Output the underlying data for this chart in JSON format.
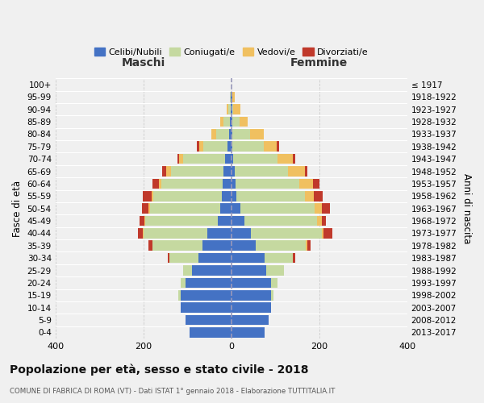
{
  "age_groups": [
    "0-4",
    "5-9",
    "10-14",
    "15-19",
    "20-24",
    "25-29",
    "30-34",
    "35-39",
    "40-44",
    "45-49",
    "50-54",
    "55-59",
    "60-64",
    "65-69",
    "70-74",
    "75-79",
    "80-84",
    "85-89",
    "90-94",
    "95-99",
    "100+"
  ],
  "birth_years": [
    "2013-2017",
    "2008-2012",
    "2003-2007",
    "1998-2002",
    "1993-1997",
    "1988-1992",
    "1983-1987",
    "1978-1982",
    "1973-1977",
    "1968-1972",
    "1963-1967",
    "1958-1962",
    "1953-1957",
    "1948-1952",
    "1943-1947",
    "1938-1942",
    "1933-1937",
    "1928-1932",
    "1923-1927",
    "1918-1922",
    "≤ 1917"
  ],
  "maschi_celibi": [
    95,
    105,
    115,
    115,
    105,
    90,
    75,
    65,
    55,
    30,
    25,
    22,
    20,
    18,
    15,
    8,
    5,
    3,
    2,
    1,
    0
  ],
  "maschi_coniugati": [
    0,
    0,
    0,
    5,
    10,
    20,
    65,
    115,
    145,
    165,
    160,
    155,
    140,
    120,
    95,
    55,
    30,
    15,
    5,
    2,
    0
  ],
  "maschi_vedovi": [
    0,
    0,
    0,
    0,
    0,
    0,
    0,
    0,
    2,
    3,
    3,
    5,
    5,
    10,
    8,
    10,
    10,
    8,
    3,
    0,
    0
  ],
  "maschi_divorziati": [
    0,
    0,
    0,
    0,
    0,
    0,
    5,
    8,
    10,
    10,
    15,
    20,
    15,
    10,
    5,
    5,
    0,
    0,
    0,
    0,
    0
  ],
  "femmine_celibi": [
    75,
    85,
    90,
    90,
    90,
    80,
    75,
    55,
    45,
    30,
    20,
    12,
    10,
    8,
    5,
    3,
    3,
    3,
    2,
    2,
    0
  ],
  "femmine_coniugati": [
    0,
    0,
    0,
    5,
    15,
    40,
    65,
    115,
    160,
    165,
    170,
    155,
    145,
    120,
    100,
    70,
    40,
    15,
    3,
    0,
    0
  ],
  "femmine_vedovi": [
    0,
    0,
    0,
    0,
    0,
    0,
    0,
    3,
    5,
    10,
    15,
    20,
    30,
    40,
    35,
    30,
    30,
    20,
    15,
    5,
    1
  ],
  "femmine_divorziati": [
    0,
    0,
    0,
    0,
    0,
    0,
    5,
    8,
    20,
    10,
    20,
    20,
    15,
    5,
    5,
    5,
    0,
    0,
    0,
    0,
    0
  ],
  "color_celibi": "#4472c4",
  "color_coniugati": "#c5d9a0",
  "color_vedovi": "#f0c060",
  "color_divorziati": "#c0392b",
  "title": "Popolazione per età, sesso e stato civile - 2018",
  "subtitle": "COMUNE DI FABRICA DI ROMA (VT) - Dati ISTAT 1° gennaio 2018 - Elaborazione TUTTITALIA.IT",
  "xlabel_left": "Maschi",
  "xlabel_right": "Femmine",
  "ylabel_left": "Fasce di età",
  "ylabel_right": "Anni di nascita",
  "xlim": 400,
  "legend_labels": [
    "Celibi/Nubili",
    "Coniugati/e",
    "Vedovi/e",
    "Divorziati/e"
  ],
  "background_color": "#f0f0f0"
}
